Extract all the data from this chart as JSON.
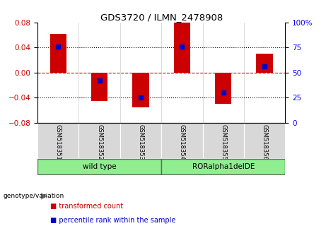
{
  "title": "GDS3720 / ILMN_2478908",
  "samples": [
    "GSM518351",
    "GSM518352",
    "GSM518353",
    "GSM518354",
    "GSM518355",
    "GSM518356"
  ],
  "transformed_counts": [
    0.062,
    -0.045,
    -0.055,
    0.08,
    -0.05,
    0.03
  ],
  "percentile_ranks": [
    0.76,
    0.42,
    0.255,
    0.76,
    0.3,
    0.56
  ],
  "ylim": [
    -0.08,
    0.08
  ],
  "yticks_left": [
    -0.08,
    -0.04,
    0,
    0.04,
    0.08
  ],
  "yticks_right": [
    0,
    25,
    50,
    75,
    100
  ],
  "bar_color": "#CC0000",
  "dot_color": "#0000CC",
  "zero_line_color": "#CC0000",
  "bg_color": "#d8d8d8",
  "group_light_green": "#90EE90",
  "group_spans": [
    [
      0,
      3,
      "wild type"
    ],
    [
      3,
      6,
      "RORalpha1delDE"
    ]
  ],
  "genotype_label": "genotype/variation",
  "legend_items": [
    "transformed count",
    "percentile rank within the sample"
  ],
  "legend_colors": [
    "#CC0000",
    "#0000CC"
  ],
  "bar_width": 0.4
}
